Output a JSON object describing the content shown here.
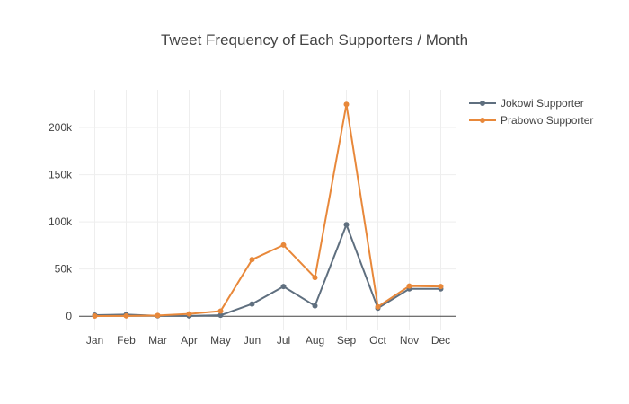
{
  "chart_data": {
    "type": "line",
    "title": "Tweet Frequency of Each Supporters / Month",
    "xlabel": "",
    "ylabel": "",
    "categories": [
      "Jan",
      "Feb",
      "Mar",
      "Apr",
      "May",
      "Jun",
      "Jul",
      "Aug",
      "Sep",
      "Oct",
      "Nov",
      "Dec"
    ],
    "y_ticks": [
      0,
      50000,
      100000,
      150000,
      200000
    ],
    "y_tick_labels": [
      "0",
      "50k",
      "100k",
      "150k",
      "200k"
    ],
    "ylim": [
      -15000,
      240000
    ],
    "grid": true,
    "legend_position": "top-right",
    "series": [
      {
        "name": "Jokowi Supporter",
        "color": "#5f6f7f",
        "values": [
          1200,
          1800,
          500,
          300,
          1000,
          13000,
          31500,
          11000,
          97000,
          8500,
          29000,
          29000
        ]
      },
      {
        "name": "Prabowo Supporter",
        "color": "#e8883a",
        "values": [
          200,
          400,
          800,
          2500,
          5500,
          60000,
          75500,
          41000,
          224500,
          10000,
          32000,
          31500
        ]
      }
    ]
  }
}
